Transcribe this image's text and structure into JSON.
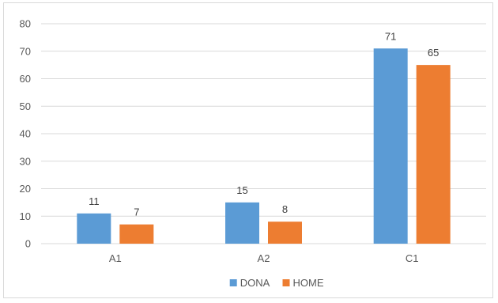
{
  "chart_data": {
    "type": "bar",
    "categories": [
      "A1",
      "A2",
      "C1"
    ],
    "series": [
      {
        "name": "DONA",
        "values": [
          11,
          15,
          71
        ],
        "color": "#5B9BD5"
      },
      {
        "name": "HOME",
        "values": [
          7,
          8,
          65
        ],
        "color": "#ED7D31"
      }
    ],
    "title": "",
    "xlabel": "",
    "ylabel": "",
    "ylim": [
      0,
      80
    ],
    "yticks": [
      0,
      10,
      20,
      30,
      40,
      50,
      60,
      70,
      80
    ],
    "grid": true,
    "data_labels": true,
    "legend_position": "bottom",
    "gridline_color": "#d9d9d9"
  }
}
